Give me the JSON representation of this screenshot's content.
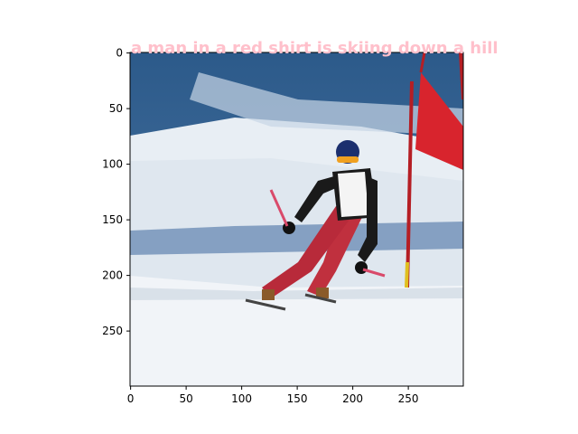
{
  "caption": "a man in a red shirt is skiing down a hill",
  "colors": {
    "caption": "#ffc0cb",
    "sky": "#2f5f8f",
    "snow": "#eef2f6",
    "shadow": "#6d8fb4",
    "suit": "#c0303e",
    "jacket": "#1a1a1a",
    "flag": "#d8242d",
    "helmet": "#1c2f6e"
  },
  "axes": {
    "x_range": [
      0,
      299
    ],
    "y_range": [
      299,
      0
    ],
    "x_ticks": [
      {
        "value": 0,
        "label": "0"
      },
      {
        "value": 50,
        "label": "50"
      },
      {
        "value": 100,
        "label": "100"
      },
      {
        "value": 150,
        "label": "150"
      },
      {
        "value": 200,
        "label": "200"
      },
      {
        "value": 250,
        "label": "250"
      }
    ],
    "y_ticks": [
      {
        "value": 0,
        "label": "0"
      },
      {
        "value": 50,
        "label": "50"
      },
      {
        "value": 100,
        "label": "100"
      },
      {
        "value": 150,
        "label": "150"
      },
      {
        "value": 200,
        "label": "200"
      },
      {
        "value": 250,
        "label": "250"
      }
    ]
  }
}
